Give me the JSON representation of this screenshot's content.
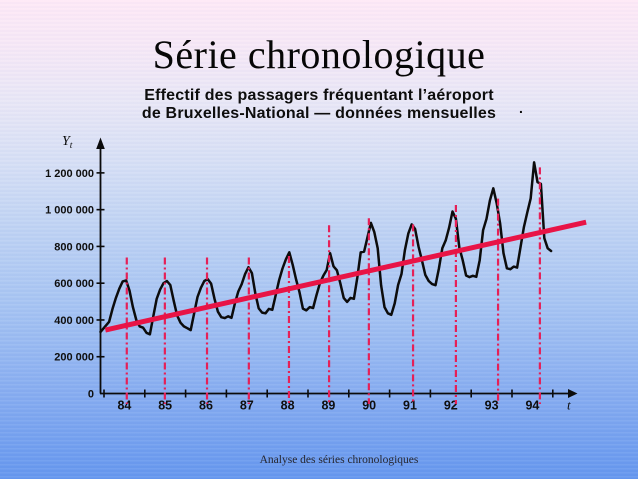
{
  "slide": {
    "title": "Série chronologique",
    "subtitle_line1": "Effectif des passagers fréquentant l’aéroport",
    "subtitle_line2": "de Bruxelles-National — données mensuelles",
    "subtitle_dot": ".",
    "footer": "Analyse des séries chronologiques"
  },
  "colors": {
    "axis": "#0b0b0b",
    "series": "#0c0c0c",
    "trend_red": "#e81446",
    "marker_red": "#e52057",
    "text_dark": "#0f0f0f"
  },
  "chart_data": {
    "type": "line",
    "title": "Effectif des passagers fréquentant l'aéroport de Bruxelles-National — données mensuelles",
    "ylabel": "Yt",
    "xlabel": "t",
    "frequency": "monthly",
    "ylim_k": [
      0,
      1300
    ],
    "grid": false,
    "y_ticks": [
      {
        "label": "0",
        "value_k": 0
      },
      {
        "label": "200 000",
        "value_k": 200
      },
      {
        "label": "400 000",
        "value_k": 400
      },
      {
        "label": "600 000",
        "value_k": 600
      },
      {
        "label": "800 000",
        "value_k": 800
      },
      {
        "label": "1 000 000",
        "value_k": 1000
      },
      {
        "label": "1 200 000",
        "value_k": 1200
      }
    ],
    "year_labels": [
      "84",
      "85",
      "86",
      "87",
      "88",
      "89",
      "90",
      "91",
      "92",
      "93",
      "94"
    ],
    "series_by_year": [
      {
        "year": "84",
        "values_k": [
          335,
          390,
          460,
          520,
          570,
          610,
          615,
          560,
          470,
          400,
          365,
          358
        ]
      },
      {
        "year": "85",
        "values_k": [
          330,
          322,
          420,
          515,
          565,
          600,
          612,
          590,
          505,
          425,
          385,
          365
        ]
      },
      {
        "year": "86",
        "values_k": [
          355,
          345,
          435,
          525,
          575,
          612,
          622,
          598,
          515,
          445,
          415,
          410
        ]
      },
      {
        "year": "87",
        "values_k": [
          420,
          412,
          490,
          555,
          595,
          650,
          687,
          655,
          545,
          463,
          440,
          436
        ]
      },
      {
        "year": "88",
        "values_k": [
          460,
          455,
          535,
          616,
          680,
          730,
          768,
          700,
          620,
          551,
          462,
          452
        ]
      },
      {
        "year": "89",
        "values_k": [
          470,
          465,
          535,
          600,
          640,
          672,
          763,
          692,
          670,
          600,
          520,
          498
        ]
      },
      {
        "year": "90",
        "values_k": [
          520,
          515,
          630,
          768,
          772,
          850,
          928,
          878,
          790,
          589,
          470,
          436
        ]
      },
      {
        "year": "91",
        "values_k": [
          428,
          490,
          590,
          650,
          780,
          870,
          920,
          895,
          800,
          725,
          645,
          612
        ]
      },
      {
        "year": "92",
        "values_k": [
          595,
          589,
          680,
          790,
          833,
          902,
          990,
          950,
          795,
          725,
          642,
          633
        ]
      },
      {
        "year": "93",
        "values_k": [
          640,
          635,
          725,
          888,
          950,
          1050,
          1116,
          1034,
          926,
          763,
          681,
          676
        ]
      },
      {
        "year": "94",
        "values_k": [
          690,
          685,
          795,
          905,
          985,
          1062,
          1257,
          1150,
          1140,
          845,
          790,
          775
        ]
      }
    ],
    "trend_line": {
      "from_month": 0.4,
      "from_value_k": 345,
      "to_month": 141.8,
      "to_value_k": 932
    },
    "peak_markers": [
      {
        "month": 6.7,
        "top_value_k": 740
      },
      {
        "month": 17.9,
        "top_value_k": 740
      },
      {
        "month": 30.3,
        "top_value_k": 740
      },
      {
        "month": 42.6,
        "top_value_k": 740
      },
      {
        "month": 54.4,
        "top_value_k": 748
      },
      {
        "month": 66.2,
        "top_value_k": 915
      },
      {
        "month": 77.9,
        "top_value_k": 953
      },
      {
        "month": 90.9,
        "top_value_k": 920
      },
      {
        "month": 103.5,
        "top_value_k": 1025
      },
      {
        "month": 115.9,
        "top_value_k": 1060
      },
      {
        "month": 128.2,
        "top_value_k": 1230
      }
    ]
  }
}
